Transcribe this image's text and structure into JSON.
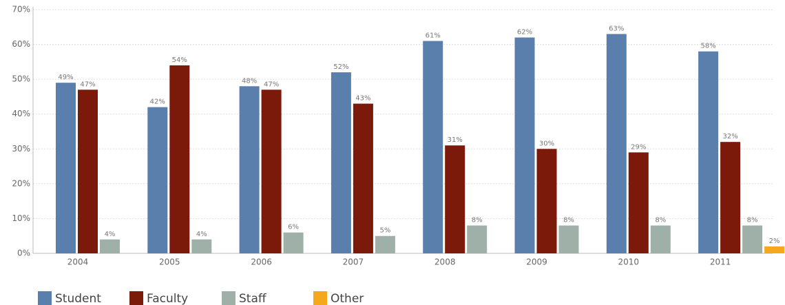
{
  "chart_data": {
    "type": "bar",
    "categories": [
      "2004",
      "2005",
      "2006",
      "2007",
      "2008",
      "2009",
      "2010",
      "2011"
    ],
    "series": [
      {
        "name": "Student",
        "color": "#5b7fac",
        "values": [
          49,
          42,
          48,
          52,
          61,
          62,
          63,
          58
        ],
        "value_labels": [
          "49%",
          "42%",
          "48%",
          "52%",
          "61%",
          "62%",
          "63%",
          "58%"
        ]
      },
      {
        "name": "Faculty",
        "color": "#7b1a0b",
        "values": [
          47,
          54,
          47,
          43,
          31,
          30,
          29,
          32
        ],
        "value_labels": [
          "47%",
          "54%",
          "47%",
          "43%",
          "31%",
          "30%",
          "29%",
          "32%"
        ]
      },
      {
        "name": "Staff",
        "color": "#9fb0a9",
        "values": [
          4,
          4,
          6,
          5,
          8,
          8,
          8,
          8
        ],
        "value_labels": [
          "4%",
          "4%",
          "6%",
          "5%",
          "8%",
          "8%",
          "8%",
          "8%"
        ]
      },
      {
        "name": "Other",
        "color": "#f5a81c",
        "values": [
          null,
          null,
          null,
          null,
          null,
          null,
          null,
          2
        ],
        "value_labels": [
          null,
          null,
          null,
          null,
          null,
          null,
          null,
          "2%"
        ]
      }
    ],
    "ylim": [
      0,
      70
    ],
    "yticks": [
      {
        "value": 0,
        "label": "0%"
      },
      {
        "value": 10,
        "label": "10%"
      },
      {
        "value": 20,
        "label": "20%"
      },
      {
        "value": 30,
        "label": "30%"
      },
      {
        "value": 40,
        "label": "40%"
      },
      {
        "value": 50,
        "label": "50%"
      },
      {
        "value": 60,
        "label": "60%"
      },
      {
        "value": 70,
        "label": "70%"
      }
    ],
    "grid": true,
    "legend": "bottom"
  }
}
